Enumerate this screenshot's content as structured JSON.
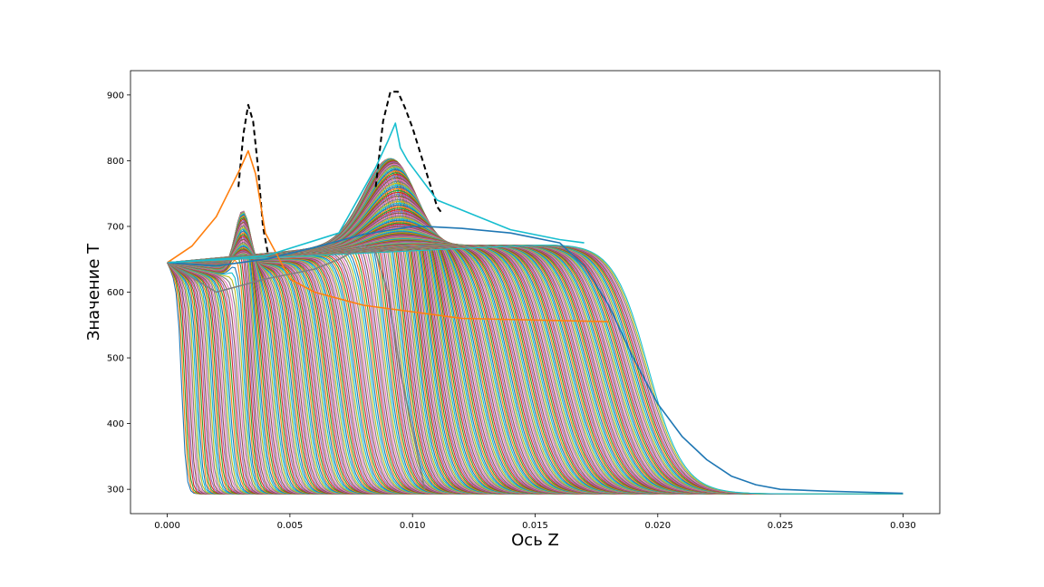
{
  "chart_data": {
    "type": "line",
    "title": "",
    "xlabel": "Ось Z",
    "ylabel": "Значение T",
    "xlim": [
      -0.0015,
      0.0315
    ],
    "ylim": [
      263,
      937
    ],
    "x_ticks": [
      "0.000",
      "0.005",
      "0.010",
      "0.015",
      "0.020",
      "0.025",
      "0.030"
    ],
    "x_tick_values": [
      0,
      0.005,
      0.01,
      0.015,
      0.02,
      0.025,
      0.03
    ],
    "y_ticks": [
      "300",
      "400",
      "500",
      "600",
      "700",
      "800",
      "900"
    ],
    "y_tick_values": [
      300,
      400,
      500,
      600,
      700,
      800,
      900
    ],
    "grid": false,
    "legend": "none",
    "series_palette": [
      "#1f77b4",
      "#ff7f0e",
      "#2ca02c",
      "#d62728",
      "#9467bd",
      "#8c564b",
      "#e377c2",
      "#7f7f7f",
      "#bcbd22",
      "#17becf"
    ],
    "series_count_approx": 300,
    "base_temperature": 293,
    "inlet_temperature": 645,
    "series": [
      {
        "color": "#000000",
        "style": "dashed",
        "x": [
          0.0029,
          0.0031,
          0.0033,
          0.0035,
          0.0037,
          0.0039,
          0.0041
        ],
        "y": [
          760,
          840,
          885,
          860,
          790,
          700,
          660
        ]
      },
      {
        "color": "#000000",
        "style": "dashed",
        "x": [
          0.0085,
          0.0088,
          0.0091,
          0.0094,
          0.0097,
          0.01,
          0.0105,
          0.011,
          0.0112
        ],
        "y": [
          760,
          860,
          905,
          905,
          880,
          850,
          790,
          730,
          720
        ]
      },
      {
        "color": "#1f77b4",
        "style": "solid",
        "x": [
          0.0,
          0.002,
          0.004,
          0.006,
          0.008,
          0.01,
          0.0105,
          0.012,
          0.014,
          0.016,
          0.017,
          0.018,
          0.019,
          0.02,
          0.021,
          0.022,
          0.023,
          0.024,
          0.025,
          0.027,
          0.03
        ],
        "y": [
          645,
          640,
          650,
          668,
          688,
          700,
          700,
          697,
          690,
          675,
          640,
          580,
          500,
          430,
          380,
          345,
          320,
          307,
          300,
          297,
          294
        ]
      },
      {
        "color": "#ff7f0e",
        "style": "solid",
        "x": [
          0.0,
          0.001,
          0.002,
          0.003,
          0.0033,
          0.0036,
          0.004,
          0.005,
          0.006,
          0.008,
          0.012,
          0.018
        ],
        "y": [
          645,
          670,
          715,
          790,
          815,
          780,
          690,
          620,
          600,
          580,
          560,
          555
        ]
      },
      {
        "color": "#17becf",
        "style": "solid",
        "x": [
          0.0,
          0.004,
          0.007,
          0.0085,
          0.009,
          0.0093,
          0.0095,
          0.0098,
          0.01,
          0.011,
          0.014,
          0.016,
          0.017
        ],
        "y": [
          645,
          655,
          690,
          790,
          830,
          857,
          820,
          800,
          790,
          740,
          695,
          680,
          675
        ]
      },
      {
        "color": "#7f7f7f",
        "style": "solid",
        "x": [
          0.0,
          0.002,
          0.004,
          0.006,
          0.007,
          0.0075,
          0.008,
          0.0085,
          0.009,
          0.0095,
          0.0105
        ],
        "y": [
          645,
          600,
          620,
          635,
          650,
          660,
          672,
          660,
          600,
          480,
          300
        ]
      }
    ]
  }
}
